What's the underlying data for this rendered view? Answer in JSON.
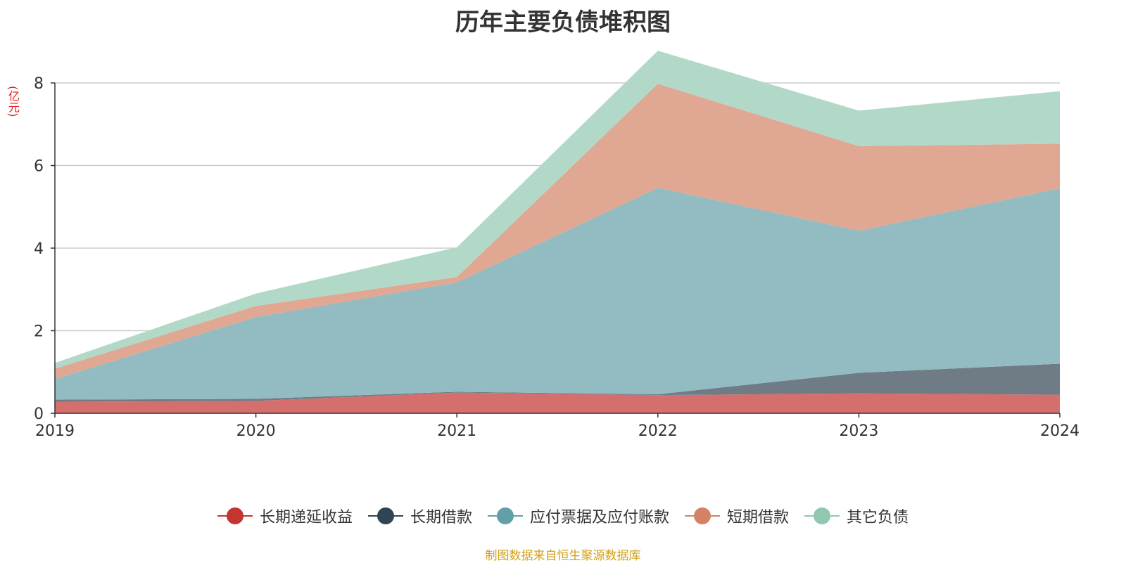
{
  "chart_data": {
    "type": "area",
    "stacked": true,
    "title": "历年主要负债堆积图",
    "ylabel": "(亿元)",
    "xlabel": "",
    "x": [
      "2019",
      "2020",
      "2021",
      "2022",
      "2023",
      "2024"
    ],
    "ylim": [
      0,
      8
    ],
    "yticks": [
      "0",
      "2",
      "4",
      "6",
      "8"
    ],
    "grid": true,
    "legend_position": "bottom",
    "series": [
      {
        "name": "长期递延收益",
        "color": "#c23531",
        "area_color": "#d46f6d",
        "values": [
          0.28,
          0.3,
          0.5,
          0.44,
          0.48,
          0.45
        ]
      },
      {
        "name": "长期借款",
        "color": "#2f4554",
        "area_color": "#6f7c86",
        "values": [
          0.05,
          0.05,
          0.02,
          0.02,
          0.5,
          0.75
        ]
      },
      {
        "name": "应付票据及应付账款",
        "color": "#61a0a8",
        "area_color": "#92bbc2",
        "values": [
          0.5,
          1.98,
          2.65,
          5.0,
          3.44,
          4.25
        ]
      },
      {
        "name": "短期借款",
        "color": "#d48265",
        "area_color": "#e0a792",
        "values": [
          0.25,
          0.27,
          0.13,
          2.52,
          2.05,
          1.08
        ]
      },
      {
        "name": "其它负债",
        "color": "#91c7ae",
        "area_color": "#b2d9c8",
        "values": [
          0.14,
          0.3,
          0.72,
          0.8,
          0.86,
          1.27
        ]
      }
    ]
  },
  "footer": {
    "source": "制图数据来自恒生聚源数据库"
  }
}
